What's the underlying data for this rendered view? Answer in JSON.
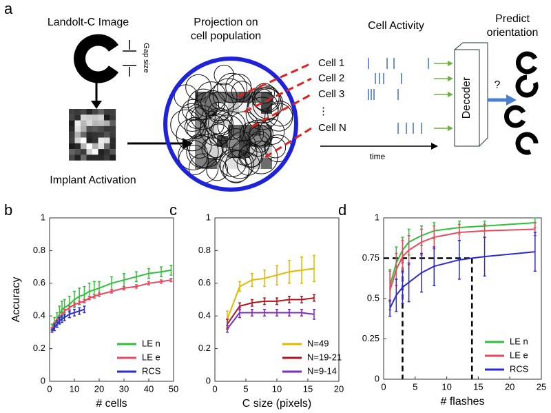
{
  "panel_a": {
    "label": "a",
    "landolt_title": "Landolt-C Image",
    "gap_size": "Gap size",
    "implant_title": "Implant Activation",
    "projection_title": [
      "Projection on",
      "cell population"
    ],
    "activity_title": "Cell Activity",
    "cells": [
      "Cell 1",
      "Cell 2",
      "Cell 3",
      "⋮",
      "Cell N"
    ],
    "time": "time",
    "predict_title": [
      "Predict",
      "orientation"
    ],
    "decoder": "Decoder",
    "question": "?"
  },
  "chart_data": [
    {
      "type": "line",
      "panel_label": "b",
      "xlabel": "# cells",
      "ylabel": "Accuracy",
      "xlim": [
        0,
        50
      ],
      "ylim": [
        0,
        1
      ],
      "xticks": [
        0,
        10,
        20,
        30,
        40,
        50
      ],
      "yticks": [
        0,
        0.2,
        0.4,
        0.6,
        0.8,
        1
      ],
      "legend": "lower right",
      "series": [
        {
          "name": "LE n",
          "color": "#2ec03a",
          "x": [
            1,
            2,
            3,
            4,
            5,
            6,
            8,
            10,
            12,
            14,
            16,
            18,
            20,
            25,
            30,
            35,
            40,
            45,
            49
          ],
          "values": [
            0.33,
            0.36,
            0.38,
            0.41,
            0.44,
            0.45,
            0.47,
            0.5,
            0.52,
            0.53,
            0.55,
            0.56,
            0.57,
            0.6,
            0.62,
            0.64,
            0.66,
            0.67,
            0.68
          ],
          "errors": [
            0.02,
            0.03,
            0.04,
            0.05,
            0.05,
            0.05,
            0.05,
            0.05,
            0.05,
            0.05,
            0.05,
            0.05,
            0.04,
            0.04,
            0.04,
            0.03,
            0.03,
            0.03,
            0.03
          ]
        },
        {
          "name": "LE e",
          "color": "#e8475e",
          "x": [
            1,
            2,
            3,
            4,
            5,
            6,
            8,
            10,
            12,
            14,
            16,
            18,
            20,
            25,
            30,
            35,
            40,
            45,
            49
          ],
          "values": [
            0.32,
            0.35,
            0.37,
            0.39,
            0.41,
            0.43,
            0.45,
            0.47,
            0.48,
            0.49,
            0.51,
            0.52,
            0.53,
            0.55,
            0.57,
            0.58,
            0.6,
            0.61,
            0.62
          ],
          "errors": [
            0.01,
            0.01,
            0.01,
            0.01,
            0.01,
            0.01,
            0.01,
            0.01,
            0.01,
            0.01,
            0.01,
            0.01,
            0.01,
            0.01,
            0.01,
            0.01,
            0.01,
            0.01,
            0.01
          ]
        },
        {
          "name": "RCS",
          "color": "#2a2ad0",
          "x": [
            1,
            2,
            3,
            4,
            5,
            6,
            8,
            10,
            12,
            14
          ],
          "values": [
            0.31,
            0.33,
            0.35,
            0.37,
            0.38,
            0.39,
            0.41,
            0.42,
            0.43,
            0.44
          ],
          "errors": [
            0.01,
            0.02,
            0.02,
            0.02,
            0.02,
            0.02,
            0.02,
            0.02,
            0.02,
            0.02
          ]
        }
      ]
    },
    {
      "type": "line",
      "panel_label": "c",
      "xlabel": "C size (pixels)",
      "xlim": [
        0,
        20
      ],
      "ylim": [
        0,
        1
      ],
      "xticks": [
        0,
        5,
        10,
        15,
        20
      ],
      "yticks": [
        0,
        0.2,
        0.4,
        0.6,
        0.8,
        1
      ],
      "legend": "lower right",
      "series": [
        {
          "name": "N=49",
          "color": "#e0b800",
          "x": [
            2,
            4,
            6,
            8,
            10,
            12,
            14,
            16
          ],
          "values": [
            0.38,
            0.58,
            0.62,
            0.63,
            0.65,
            0.67,
            0.68,
            0.69
          ],
          "errors": [
            0.05,
            0.03,
            0.04,
            0.05,
            0.06,
            0.07,
            0.08,
            0.08
          ]
        },
        {
          "name": "N=19-21",
          "color": "#b0141e",
          "x": [
            2,
            4,
            6,
            8,
            10,
            12,
            14,
            16
          ],
          "values": [
            0.35,
            0.46,
            0.48,
            0.49,
            0.49,
            0.5,
            0.5,
            0.51
          ],
          "errors": [
            0.03,
            0.02,
            0.02,
            0.02,
            0.02,
            0.02,
            0.02,
            0.02
          ]
        },
        {
          "name": "N=9-14",
          "color": "#7a2ac0",
          "x": [
            2,
            4,
            6,
            8,
            10,
            12,
            14,
            16
          ],
          "values": [
            0.32,
            0.42,
            0.42,
            0.42,
            0.42,
            0.42,
            0.42,
            0.41
          ],
          "errors": [
            0.02,
            0.03,
            0.02,
            0.02,
            0.02,
            0.02,
            0.02,
            0.03
          ]
        }
      ]
    },
    {
      "type": "line",
      "panel_label": "d",
      "xlabel": "# flashes",
      "xlim": [
        0,
        25
      ],
      "ylim": [
        0,
        1
      ],
      "xticks": [
        0,
        5,
        10,
        15,
        20,
        25
      ],
      "yticks": [
        0,
        0.25,
        0.5,
        0.75,
        1
      ],
      "legend": "lower right",
      "ref_y": 0.75,
      "ref_x": [
        3,
        14
      ],
      "series": [
        {
          "name": "LE n",
          "color": "#2ec03a",
          "x": [
            1,
            2,
            3,
            4,
            6,
            8,
            12,
            16,
            24
          ],
          "values": [
            0.58,
            0.72,
            0.8,
            0.85,
            0.89,
            0.92,
            0.94,
            0.95,
            0.97
          ],
          "errors": [
            0.1,
            0.1,
            0.08,
            0.08,
            0.06,
            0.05,
            0.04,
            0.03,
            0.03
          ]
        },
        {
          "name": "LE e",
          "color": "#e8475e",
          "x": [
            1,
            2,
            3,
            4,
            6,
            8,
            12,
            16,
            24
          ],
          "values": [
            0.55,
            0.68,
            0.76,
            0.8,
            0.85,
            0.88,
            0.91,
            0.92,
            0.93
          ],
          "errors": [
            0.12,
            0.1,
            0.1,
            0.09,
            0.08,
            0.07,
            0.05,
            0.04,
            0.04
          ]
        },
        {
          "name": "RCS",
          "color": "#2a2ad0",
          "x": [
            1,
            2,
            3,
            4,
            6,
            8,
            12,
            16,
            24
          ],
          "values": [
            0.44,
            0.52,
            0.57,
            0.6,
            0.66,
            0.7,
            0.74,
            0.76,
            0.79
          ],
          "errors": [
            0.05,
            0.1,
            0.1,
            0.12,
            0.12,
            0.12,
            0.12,
            0.12,
            0.12
          ]
        }
      ]
    }
  ]
}
